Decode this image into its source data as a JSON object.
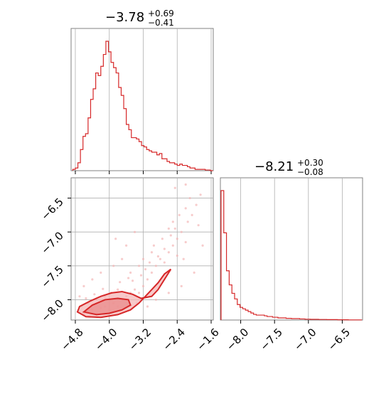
{
  "colors": {
    "series": "#d62728",
    "grid": "#b0b0b0",
    "frame": "#808080",
    "fill": "#f4b7b7"
  },
  "chart_data": [
    {
      "type": "histogram",
      "panel": "top-left",
      "title": {
        "median": "−3.78",
        "plus": "+0.69",
        "minus": "−0.41"
      },
      "xlim": [
        -4.9,
        -1.55
      ],
      "bins": [
        -4.83,
        -4.77,
        -4.71,
        -4.65,
        -4.59,
        -4.53,
        -4.47,
        -4.41,
        -4.35,
        -4.29,
        -4.23,
        -4.17,
        -4.11,
        -4.05,
        -3.99,
        -3.93,
        -3.87,
        -3.81,
        -3.75,
        -3.69,
        -3.63,
        -3.57,
        -3.51,
        -3.45,
        -3.39,
        -3.33,
        -3.27,
        -3.21,
        -3.15,
        -3.09,
        -3.03,
        -2.97,
        -2.91,
        -2.85,
        -2.79,
        -2.73,
        -2.67,
        -2.61,
        -2.55,
        -2.49,
        -2.43,
        -2.37,
        -2.31,
        -2.25,
        -2.19,
        -2.13,
        -2.07,
        -2.01,
        -1.95,
        -1.89,
        -1.83,
        -1.77,
        -1.71,
        -1.65,
        -1.59
      ],
      "counts": [
        0.01,
        0.02,
        0.06,
        0.16,
        0.26,
        0.28,
        0.4,
        0.54,
        0.62,
        0.74,
        0.72,
        0.79,
        0.88,
        0.98,
        0.9,
        0.82,
        0.78,
        0.74,
        0.63,
        0.57,
        0.47,
        0.35,
        0.31,
        0.25,
        0.25,
        0.24,
        0.22,
        0.19,
        0.18,
        0.16,
        0.15,
        0.14,
        0.14,
        0.12,
        0.13,
        0.09,
        0.09,
        0.07,
        0.06,
        0.06,
        0.05,
        0.04,
        0.05,
        0.04,
        0.04,
        0.03,
        0.02,
        0.02,
        0.01,
        0.01,
        0.01,
        0.01,
        0.005,
        0.005,
        0.0
      ],
      "gridlines_x": [
        -4.8,
        -4.0,
        -3.2,
        -2.4,
        -1.6
      ]
    },
    {
      "type": "scatter_contour",
      "panel": "bottom-left",
      "xlim": [
        -4.9,
        -1.55
      ],
      "ylim": [
        -8.3,
        -6.2
      ],
      "xticks": [
        "−4.8",
        "−4.0",
        "−3.2",
        "−2.4",
        "−1.6"
      ],
      "xtick_values": [
        -4.8,
        -4.0,
        -3.2,
        -2.4,
        -1.6
      ],
      "yticks": [
        "−6.5",
        "−7.0",
        "−7.5",
        "−8.0"
      ],
      "ytick_values": [
        -6.5,
        -7.0,
        -7.5,
        -8.0
      ],
      "points": [
        [
          -4.6,
          -8.2
        ],
        [
          -4.5,
          -8.18
        ],
        [
          -4.4,
          -8.15
        ],
        [
          -4.3,
          -8.2
        ],
        [
          -4.2,
          -8.12
        ],
        [
          -4.1,
          -8.1
        ],
        [
          -4.0,
          -8.15
        ],
        [
          -3.9,
          -8.05
        ],
        [
          -3.8,
          -8.1
        ],
        [
          -3.7,
          -8.0
        ],
        [
          -4.5,
          -8.05
        ],
        [
          -4.3,
          -8.0
        ],
        [
          -4.1,
          -7.95
        ],
        [
          -3.95,
          -7.9
        ],
        [
          -3.8,
          -7.85
        ],
        [
          -3.6,
          -7.95
        ],
        [
          -3.5,
          -7.9
        ],
        [
          -3.4,
          -7.85
        ],
        [
          -3.3,
          -7.9
        ],
        [
          -3.2,
          -7.8
        ],
        [
          -3.1,
          -7.7
        ],
        [
          -3.0,
          -7.6
        ],
        [
          -2.9,
          -7.5
        ],
        [
          -2.8,
          -7.4
        ],
        [
          -2.7,
          -7.45
        ],
        [
          -2.6,
          -7.3
        ],
        [
          -2.5,
          -7.2
        ],
        [
          -2.4,
          -7.1
        ],
        [
          -2.3,
          -7.0
        ],
        [
          -2.2,
          -7.15
        ],
        [
          -3.5,
          -7.6
        ],
        [
          -3.3,
          -7.5
        ],
        [
          -3.2,
          -7.4
        ],
        [
          -3.0,
          -7.3
        ],
        [
          -2.95,
          -7.2
        ],
        [
          -2.75,
          -7.1
        ],
        [
          -2.6,
          -6.95
        ],
        [
          -2.5,
          -6.85
        ],
        [
          -2.35,
          -6.75
        ],
        [
          -2.2,
          -6.65
        ],
        [
          -2.1,
          -6.5
        ],
        [
          -1.9,
          -6.9
        ],
        [
          -1.8,
          -7.2
        ],
        [
          -2.0,
          -7.6
        ],
        [
          -2.3,
          -7.8
        ],
        [
          -2.6,
          -7.9
        ],
        [
          -2.9,
          -8.0
        ],
        [
          -3.1,
          -8.1
        ],
        [
          -4.7,
          -7.95
        ],
        [
          -4.6,
          -7.8
        ],
        [
          -4.4,
          -7.7
        ],
        [
          -4.2,
          -7.6
        ],
        [
          -3.9,
          -7.5
        ],
        [
          -3.7,
          -7.4
        ],
        [
          -3.6,
          -7.2
        ],
        [
          -3.4,
          -7.0
        ],
        [
          -3.85,
          -7.1
        ],
        [
          -2.45,
          -6.35
        ],
        [
          -2.2,
          -6.3
        ],
        [
          -1.95,
          -6.6
        ],
        [
          -4.65,
          -8.1
        ],
        [
          -4.55,
          -7.98
        ],
        [
          -4.35,
          -7.92
        ],
        [
          -4.15,
          -7.84
        ],
        [
          -3.75,
          -7.74
        ],
        [
          -3.55,
          -7.68
        ],
        [
          -3.45,
          -7.72
        ],
        [
          -3.25,
          -7.64
        ],
        [
          -3.15,
          -7.55
        ],
        [
          -3.05,
          -7.45
        ],
        [
          -2.85,
          -7.36
        ],
        [
          -2.7,
          -7.25
        ],
        [
          -2.55,
          -7.05
        ],
        [
          -2.45,
          -6.95
        ],
        [
          -2.4,
          -7.35
        ],
        [
          -2.25,
          -7.4
        ],
        [
          -2.15,
          -6.85
        ],
        [
          -2.05,
          -6.75
        ],
        [
          -1.85,
          -6.45
        ],
        [
          -3.35,
          -8.05
        ]
      ],
      "contours": [
        {
          "level": "outer",
          "fill": true,
          "path": [
            [
              -4.75,
              -8.18
            ],
            [
              -4.55,
              -8.25
            ],
            [
              -4.2,
              -8.26
            ],
            [
              -3.8,
              -8.22
            ],
            [
              -3.5,
              -8.15
            ],
            [
              -3.3,
              -8.05
            ],
            [
              -3.15,
              -7.95
            ],
            [
              -3.0,
              -7.85
            ],
            [
              -2.85,
              -7.75
            ],
            [
              -2.7,
              -7.62
            ],
            [
              -2.55,
              -7.55
            ],
            [
              -2.7,
              -7.7
            ],
            [
              -2.85,
              -7.85
            ],
            [
              -3.0,
              -7.95
            ],
            [
              -3.25,
              -7.98
            ],
            [
              -3.45,
              -7.92
            ],
            [
              -3.7,
              -7.88
            ],
            [
              -3.95,
              -7.9
            ],
            [
              -4.2,
              -7.95
            ],
            [
              -4.45,
              -8.02
            ],
            [
              -4.7,
              -8.1
            ]
          ]
        },
        {
          "level": "inner",
          "fill": true,
          "path": [
            [
              -4.6,
              -8.18
            ],
            [
              -4.3,
              -8.22
            ],
            [
              -4.0,
              -8.2
            ],
            [
              -3.7,
              -8.15
            ],
            [
              -3.5,
              -8.08
            ],
            [
              -3.55,
              -8.0
            ],
            [
              -3.8,
              -7.98
            ],
            [
              -4.1,
              -8.0
            ],
            [
              -4.4,
              -8.08
            ]
          ]
        }
      ]
    },
    {
      "type": "histogram",
      "panel": "bottom-right",
      "title": {
        "median": "−8.21",
        "plus": "+0.30",
        "minus": "−0.08"
      },
      "xlim": [
        -8.3,
        -6.2
      ],
      "xticks": [
        "−8.0",
        "−7.5",
        "−7.0",
        "−6.5"
      ],
      "xtick_values": [
        -8.0,
        -7.5,
        -7.0,
        -6.5
      ],
      "bins": [
        -8.27,
        -8.23,
        -8.19,
        -8.15,
        -8.11,
        -8.07,
        -8.03,
        -7.99,
        -7.95,
        -7.91,
        -7.87,
        -7.83,
        -7.79,
        -7.75,
        -7.71,
        -7.67,
        -7.63,
        -7.59,
        -7.55,
        -7.51,
        -7.47,
        -7.43,
        -7.39,
        -7.35,
        -7.31,
        -7.27,
        -7.23,
        -7.19,
        -7.15,
        -7.11,
        -7.07,
        -7.03,
        -6.99,
        -6.95,
        -6.91,
        -6.87,
        -6.83,
        -6.79,
        -6.75,
        -6.71,
        -6.67,
        -6.63,
        -6.59,
        -6.55,
        -6.51,
        -6.47,
        -6.43,
        -6.39,
        -6.35,
        -6.31,
        -6.27,
        -6.23
      ],
      "counts": [
        0.92,
        0.62,
        0.35,
        0.25,
        0.19,
        0.15,
        0.11,
        0.09,
        0.08,
        0.07,
        0.06,
        0.05,
        0.04,
        0.035,
        0.035,
        0.035,
        0.03,
        0.025,
        0.025,
        0.02,
        0.02,
        0.015,
        0.015,
        0.015,
        0.012,
        0.012,
        0.01,
        0.01,
        0.01,
        0.008,
        0.008,
        0.006,
        0.006,
        0.005,
        0.005,
        0.005,
        0.004,
        0.004,
        0.004,
        0.003,
        0.003,
        0.003,
        0.003,
        0.002,
        0.002,
        0.002,
        0.002,
        0.001,
        0.001,
        0.001,
        0.001,
        0.001
      ],
      "gridlines_x": [
        -8.0,
        -7.5,
        -7.0,
        -6.5
      ]
    }
  ]
}
